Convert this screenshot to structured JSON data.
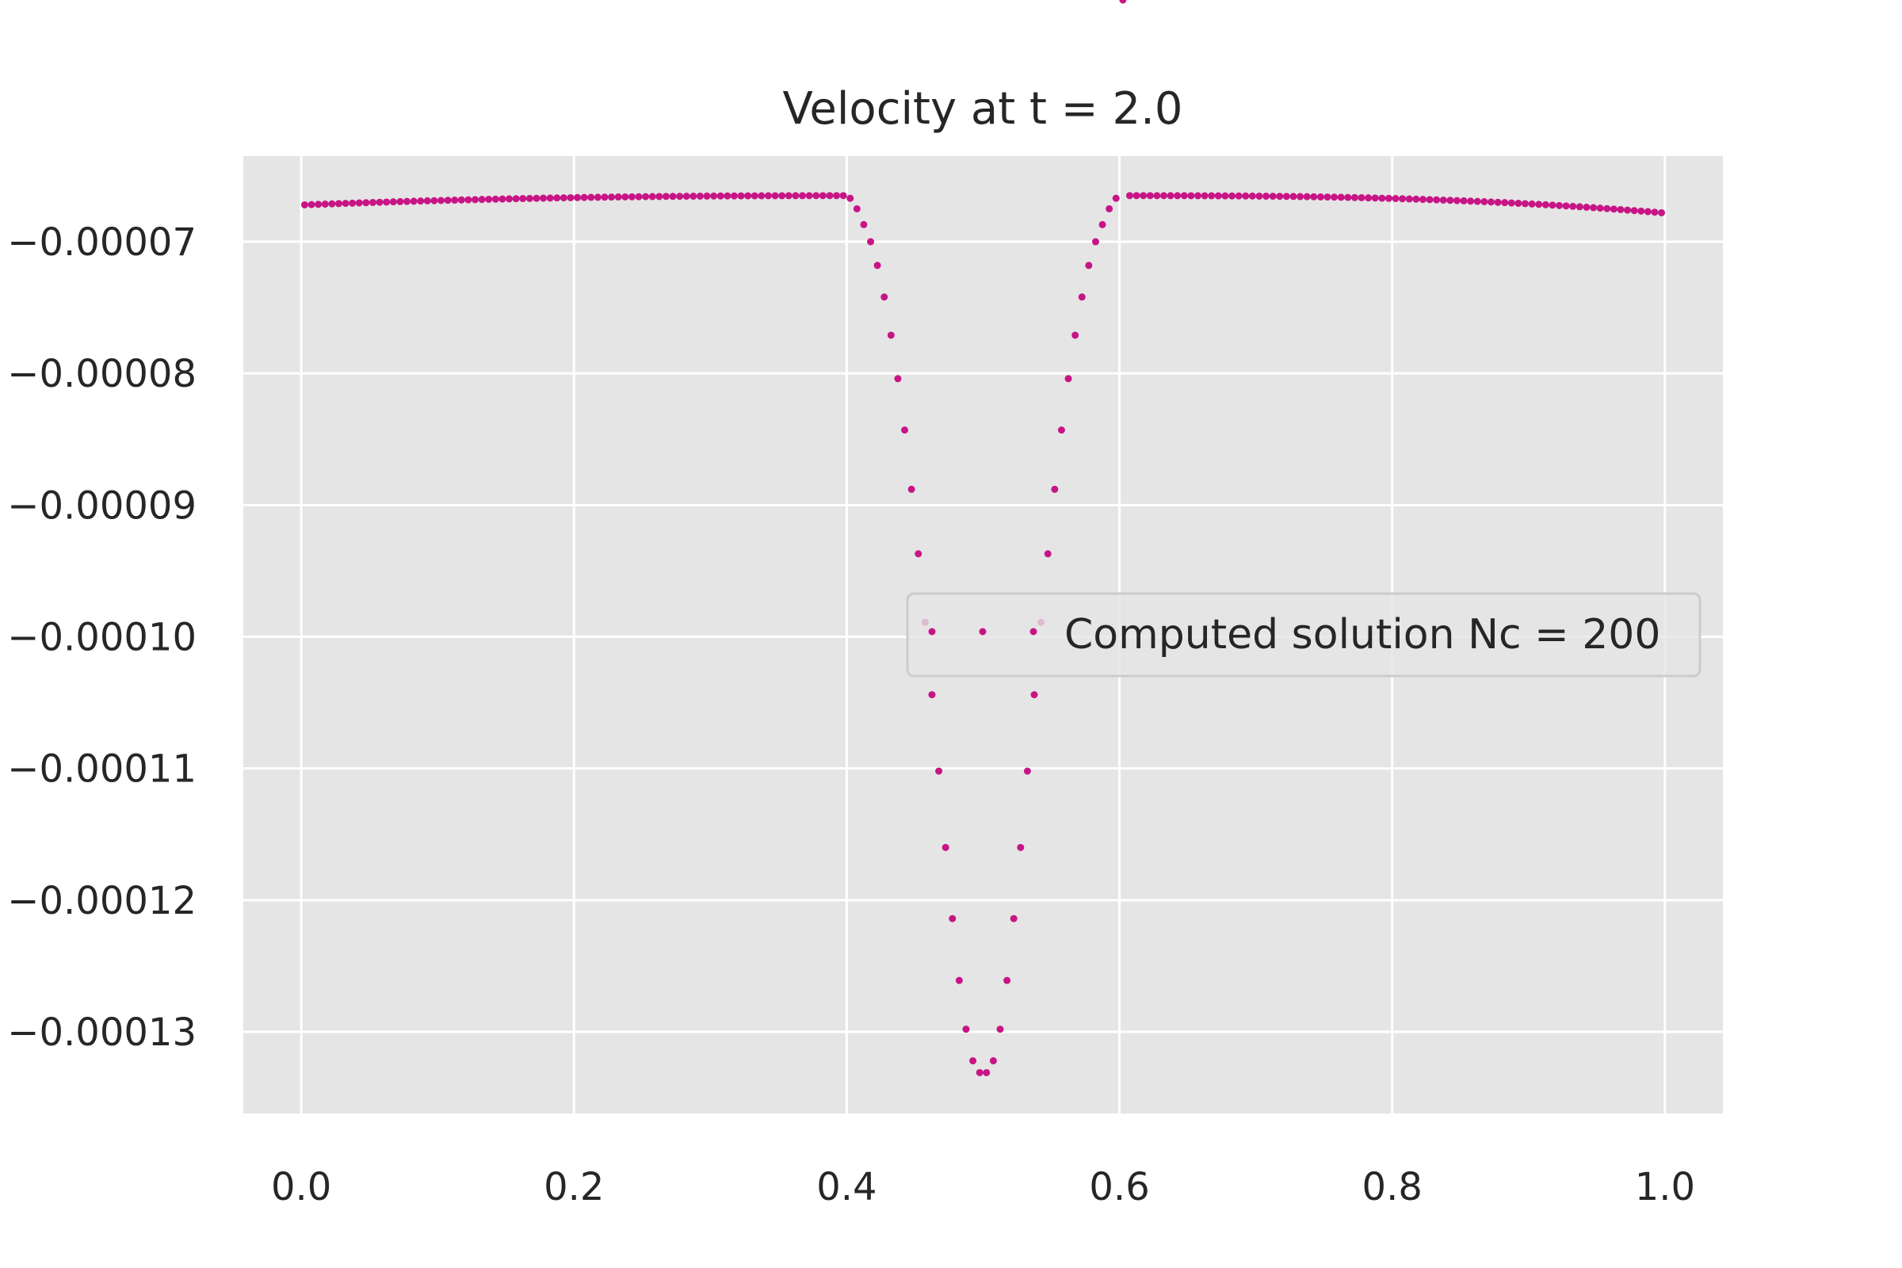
{
  "chart_data": {
    "type": "scatter",
    "title": "Velocity at t = 2.0",
    "xlabel": "",
    "ylabel": "",
    "xlim": [
      -0.0425,
      1.0425
    ],
    "ylim": [
      -0.0001362,
      -6.35e-05
    ],
    "x_ticks": [
      0.0,
      0.2,
      0.4,
      0.6,
      0.8,
      1.0
    ],
    "x_tick_labels": [
      "0.0",
      "0.2",
      "0.4",
      "0.6",
      "0.8",
      "1.0"
    ],
    "y_ticks": [
      -7e-05,
      -8e-05,
      -9e-05,
      -0.0001,
      -0.00011,
      -0.00012,
      -0.00013
    ],
    "y_tick_labels": [
      "−0.00007",
      "−0.00008",
      "−0.00009",
      "−0.00010",
      "−0.00011",
      "−0.00012",
      "−0.00013"
    ],
    "grid": true,
    "legend_position": "center-right",
    "series": [
      {
        "name": "Computed solution Nc = 200",
        "color": "#c71585",
        "marker": "point",
        "n_points": 200,
        "edge": {
          "x_start": 0.0025,
          "x_end": 0.9975,
          "y_left_start": -6.72e-05,
          "y_plateau": -6.65e-05,
          "y_right_end": -6.78e-05
        },
        "dip": {
          "x": [
            0.4025,
            0.4075,
            0.4125,
            0.4175,
            0.4225,
            0.4275,
            0.4325,
            0.4375,
            0.4425,
            0.4475,
            0.4525,
            0.4575,
            0.4625,
            0.4675,
            0.4725,
            0.4775,
            0.4825,
            0.4875,
            0.4925,
            0.4975,
            0.5025,
            0.5075,
            0.5125,
            0.5175,
            0.5225,
            0.5275,
            0.5325,
            0.5375,
            0.5425,
            0.5475,
            0.5525,
            0.5575,
            0.5625,
            0.5675,
            0.5725,
            0.5775,
            0.5825,
            0.5875,
            0.5925,
            0.5975
          ],
          "y": [
            -6.67e-05,
            -6.75e-05,
            -6.87e-05,
            -7e-05,
            -7.18e-05,
            -7.42e-05,
            -7.71e-05,
            -8.04e-05,
            -8.43e-05,
            -8.88e-05,
            -9.37e-05,
            -9.89e-05,
            -0.0001044,
            -0.0001102,
            -0.000116,
            -0.0001214,
            -0.0001261,
            -0.0001298,
            -0.0001322,
            -0.0001331,
            -0.0001331,
            -0.0001322,
            -0.0001298,
            -0.0001261,
            -0.0001214,
            -0.000116,
            -0.0001102,
            -0.0001044,
            -9.89e-05,
            -9.37e-05,
            -8.88e-05,
            -8.43e-05,
            -8.04e-05,
            -7.71e-05,
            -7.42e-05,
            -7.18e-05,
            -7e-05,
            -6.87e-05,
            -6.75e-05,
            -6.67e-05
          ]
        }
      }
    ]
  }
}
